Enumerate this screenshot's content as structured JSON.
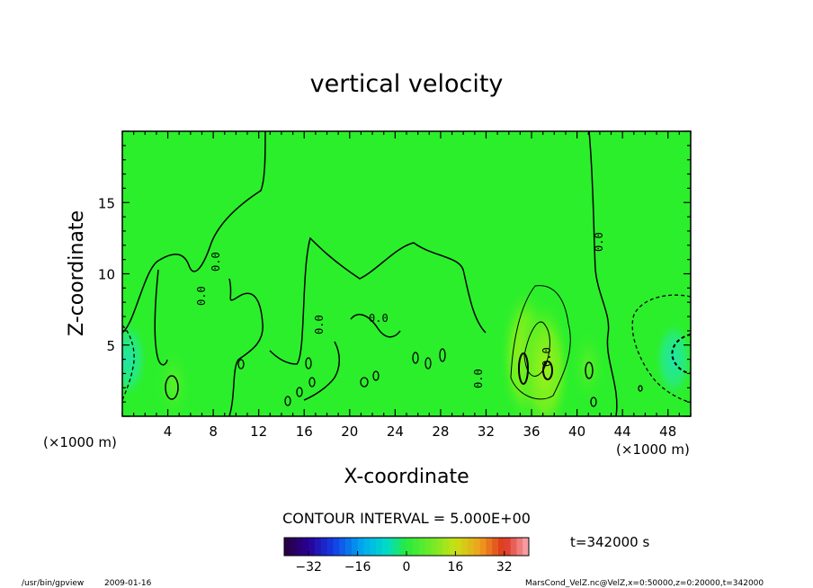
{
  "chart_data": {
    "type": "heatmap",
    "title": "vertical velocity",
    "xlabel": "X-coordinate",
    "ylabel": "Z-coordinate",
    "x_unit_left": "(×1000 m)",
    "x_unit_right": "(×1000 m)",
    "y_unit": "(×1000 m)",
    "xlim": [
      0,
      50
    ],
    "ylim": [
      0,
      20
    ],
    "x_ticks": [
      4,
      8,
      12,
      16,
      20,
      24,
      28,
      32,
      36,
      40,
      44,
      48
    ],
    "y_ticks": [
      5,
      10,
      15
    ],
    "colorscale_ticks": [
      -32,
      -16,
      0,
      16,
      32
    ],
    "colorscale_range": [
      -40,
      40
    ],
    "contour_interval_text": "CONTOUR INTERVAL = 5.000E+00",
    "contour_labels": [
      "0.0",
      "0.0",
      "0.0",
      "0.0",
      "0.0",
      "0.0",
      "0.0"
    ],
    "time_label": "t=342000 s",
    "background_color": "#2bef2b",
    "features": [
      {
        "kind": "updraft",
        "x": 4.5,
        "z": 2.2,
        "value": 5
      },
      {
        "kind": "updraft",
        "x": 35.5,
        "z": 4.2,
        "value": 10
      },
      {
        "kind": "updraft",
        "x": 37.2,
        "z": 3.3,
        "value": 10
      },
      {
        "kind": "updraft",
        "x": 41.0,
        "z": 3.5,
        "value": 5
      },
      {
        "kind": "downdraft",
        "x": 48.5,
        "z": 4.0,
        "value": -5
      },
      {
        "kind": "downdraft",
        "x": 0.5,
        "z": 4.0,
        "value": -5
      }
    ]
  },
  "footer": {
    "program": "/usr/bin/gpview",
    "date": "2009-01-16",
    "source": "MarsCond_VelZ.nc@VelZ,x=0:50000,z=0:20000,t=342000"
  }
}
